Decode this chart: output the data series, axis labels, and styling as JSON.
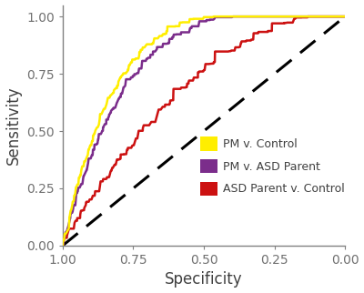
{
  "title": "",
  "xlabel": "Specificity",
  "ylabel": "Sensitivity",
  "xlim": [
    1.0,
    0.0
  ],
  "ylim": [
    0.0,
    1.05
  ],
  "xticks": [
    1.0,
    0.75,
    0.5,
    0.25,
    0.0
  ],
  "yticks": [
    0.0,
    0.25,
    0.5,
    0.75,
    1.0
  ],
  "curve_colors": {
    "yellow": "#FFEE00",
    "purple": "#7B2D8B",
    "red": "#CC1111"
  },
  "legend_labels": [
    "PM v. Control",
    "PM v. ASD Parent",
    "ASD Parent v. Control"
  ],
  "legend_colors": [
    "#FFEE00",
    "#7B2D8B",
    "#CC1111"
  ],
  "diagonal_color": "black",
  "background_color": "#FFFFFF",
  "axis_color": "#808080",
  "label_fontsize": 12,
  "tick_fontsize": 10,
  "line_width": 1.8,
  "legend_fontsize": 9,
  "yellow_power": 0.18,
  "purple_power": 0.22,
  "red_power": 0.5
}
